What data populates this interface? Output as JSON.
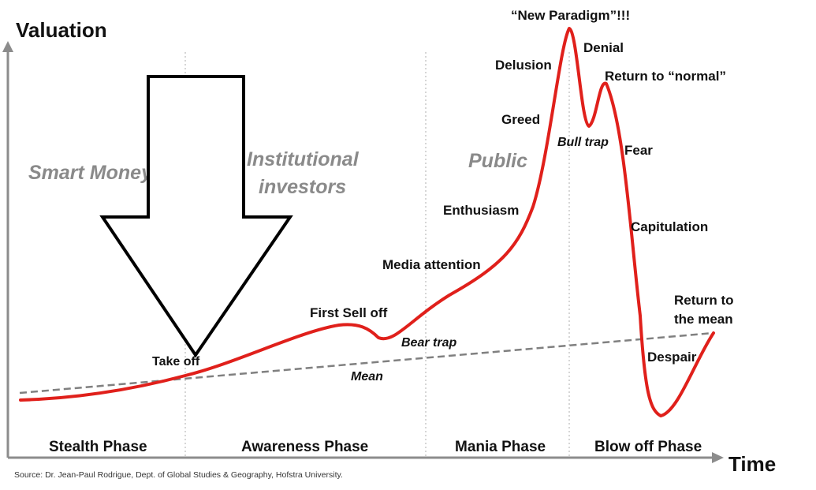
{
  "axis": {
    "y_title": "Valuation",
    "x_title": "Time"
  },
  "participants": {
    "smart_money": "Smart Money",
    "institutional_line1": "Institutional",
    "institutional_line2": "investors",
    "public": "Public"
  },
  "phases": {
    "stealth": "Stealth Phase",
    "awareness": "Awareness Phase",
    "mania": "Mania Phase",
    "blowoff": "Blow off Phase"
  },
  "annotations": {
    "take_off": "Take off",
    "first_sell_off": "First Sell off",
    "bear_trap": "Bear trap",
    "mean": "Mean",
    "media_attention": "Media attention",
    "enthusiasm": "Enthusiasm",
    "greed": "Greed",
    "delusion": "Delusion",
    "new_paradigm": "“New Paradigm”!!!",
    "denial": "Denial",
    "return_to_normal": "Return to “normal”",
    "bull_trap": "Bull trap",
    "fear": "Fear",
    "capitulation": "Capitulation",
    "despair": "Despair",
    "return_to_mean_line1": "Return to",
    "return_to_mean_line2": "the mean"
  },
  "source": "Source: Dr. Jean-Paul Rodrigue, Dept. of Global Studies & Geography, Hofstra University.",
  "colors": {
    "curve": "#e0201b",
    "mean_line": "#808080",
    "participant_text": "#8a8a8a",
    "divider": "#c8c8c8",
    "axis": "#8c8c8c"
  }
}
